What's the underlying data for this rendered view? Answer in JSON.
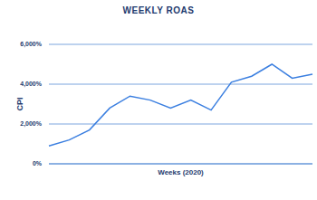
{
  "chart_data": {
    "type": "line",
    "title": "WEEKLY ROAS",
    "x_label": "Weeks (2020)",
    "y_label": "CPI",
    "categories": [
      null,
      null,
      null,
      null,
      null,
      null,
      null,
      null,
      null,
      null,
      null,
      null,
      null,
      null
    ],
    "values": [
      900,
      1200,
      1700,
      2800,
      3400,
      3200,
      2800,
      3200,
      2700,
      4100,
      4400,
      5000,
      4300,
      4500
    ],
    "color": "#3b7fe0",
    "ylim": [
      0,
      6000
    ],
    "yticks": [
      {
        "value": 0,
        "label": "0%"
      },
      {
        "value": 2000,
        "label": "2,000%"
      },
      {
        "value": 4000,
        "label": "4,000%"
      },
      {
        "value": 6000,
        "label": "6,000%"
      }
    ],
    "grid": true
  }
}
